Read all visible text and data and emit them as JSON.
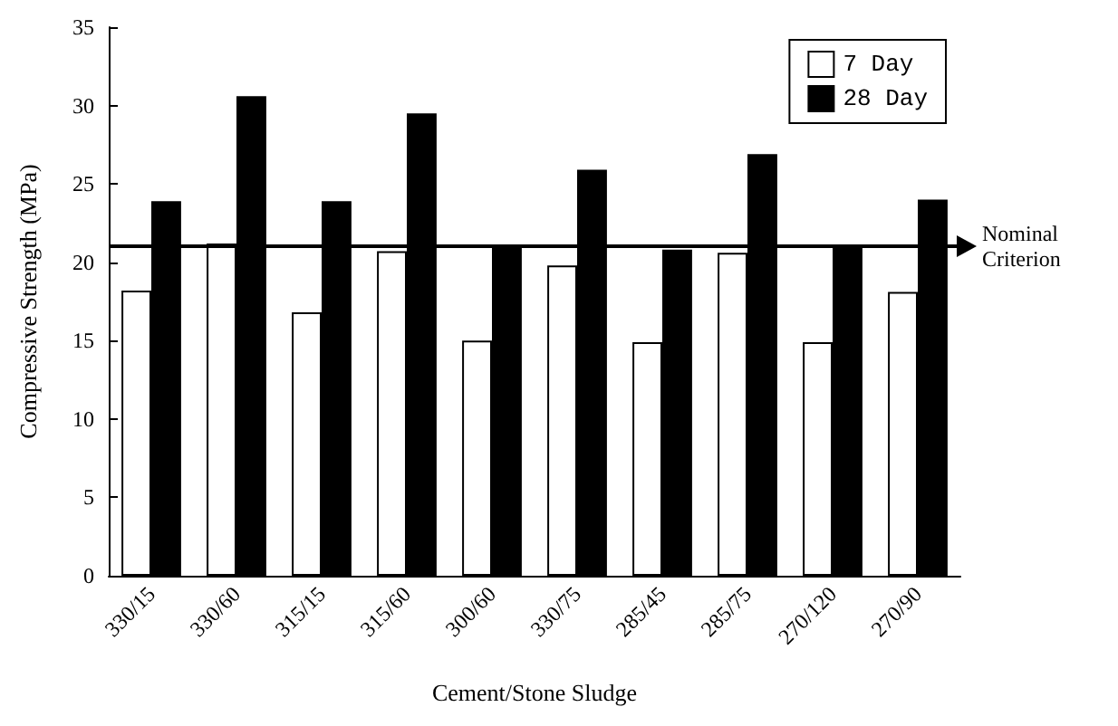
{
  "chart_data": {
    "type": "bar",
    "xlabel": "Cement/Stone Sludge",
    "ylabel": "Compressive Strength (MPa)",
    "categories": [
      "330/15",
      "330/60",
      "315/15",
      "315/60",
      "300/60",
      "330/75",
      "285/45",
      "285/75",
      "270/120",
      "270/90"
    ],
    "series": [
      {
        "name": "7 Day",
        "color": "#ffffff",
        "values": [
          18.2,
          21.2,
          16.8,
          20.7,
          15.0,
          19.8,
          14.9,
          20.6,
          14.9,
          18.1
        ]
      },
      {
        "name": "28 Day",
        "color": "#000000",
        "values": [
          23.9,
          30.6,
          23.9,
          29.5,
          21.0,
          25.9,
          20.8,
          26.9,
          21.0,
          24.0
        ]
      }
    ],
    "ylim": [
      0,
      35
    ],
    "yticks": [
      0,
      5,
      10,
      15,
      20,
      25,
      30,
      35
    ],
    "grid": false,
    "legend": "top right",
    "ref_lines": [
      {
        "axis": "y",
        "value": 21,
        "label": "Nominal Criterion",
        "color": "#000000"
      }
    ]
  }
}
